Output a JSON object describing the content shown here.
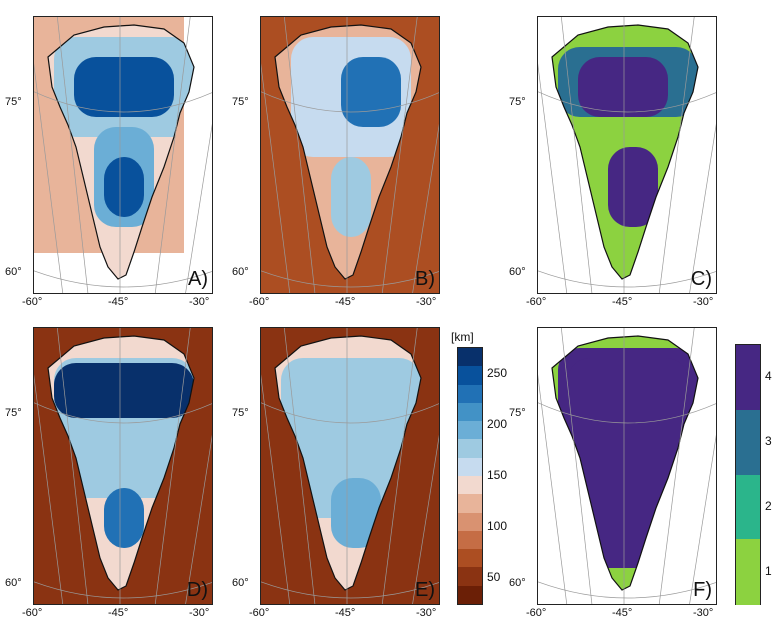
{
  "chart_data": {
    "type": "heatmap",
    "panels": [
      {
        "id": "A",
        "label": "A)",
        "colorbar": "thickness",
        "x_ticks": [
          "-60°",
          "-45°",
          "-30°"
        ],
        "y_ticks": [
          "75°",
          "60°"
        ]
      },
      {
        "id": "B",
        "label": "B)",
        "colorbar": "thickness",
        "x_ticks": [
          "-60°",
          "-45°",
          "-30°"
        ],
        "y_ticks": [
          "75°",
          "60°"
        ]
      },
      {
        "id": "C",
        "label": "C)",
        "colorbar": "class",
        "x_ticks": [
          "-60°",
          "-45°",
          "-30°"
        ],
        "y_ticks": [
          "75°",
          "60°"
        ]
      },
      {
        "id": "D",
        "label": "D)",
        "colorbar": "thickness",
        "x_ticks": [
          "-60°",
          "-45°",
          "-30°"
        ],
        "y_ticks": [
          "75°",
          "60°"
        ]
      },
      {
        "id": "E",
        "label": "E)",
        "colorbar": "thickness",
        "x_ticks": [
          "-60°",
          "-45°",
          "-30°"
        ],
        "y_ticks": [
          "75°",
          "60°"
        ]
      },
      {
        "id": "F",
        "label": "F)",
        "colorbar": "class",
        "x_ticks": [
          "-60°",
          "-45°",
          "-30°"
        ],
        "y_ticks": [
          "75°",
          "60°"
        ]
      }
    ],
    "colorbars": {
      "thickness": {
        "unit": "[km]",
        "range": [
          25,
          275
        ],
        "ticks": [
          "250",
          "200",
          "150",
          "100",
          "50"
        ],
        "tick_values": [
          250,
          200,
          150,
          100,
          50
        ],
        "colors": [
          "#08306b",
          "#08519c",
          "#2171b5",
          "#4292c6",
          "#6baed6",
          "#9ecae1",
          "#c6dbef",
          "#f2d9cf",
          "#e8b49a",
          "#d99271",
          "#c56d45",
          "#ac4e22",
          "#8a3312",
          "#6b1f06"
        ]
      },
      "class": {
        "ticks": [
          "4",
          "3",
          "2",
          "1"
        ],
        "tick_values": [
          4,
          3,
          2,
          1
        ],
        "range": [
          0.5,
          4.5
        ],
        "colors": [
          "#8cd240",
          "#2bb58b",
          "#2a6f91",
          "#462783"
        ]
      }
    }
  }
}
